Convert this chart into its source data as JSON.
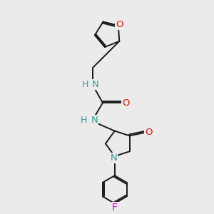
{
  "background_color": "#ebebeb",
  "bond_color": "#1a1a1a",
  "atom_colors": {
    "N": "#3a9898",
    "O": "#ee1100",
    "F": "#ee00ee",
    "C": "#1a1a1a"
  },
  "font_size": 9.5,
  "line_width": 1.4
}
